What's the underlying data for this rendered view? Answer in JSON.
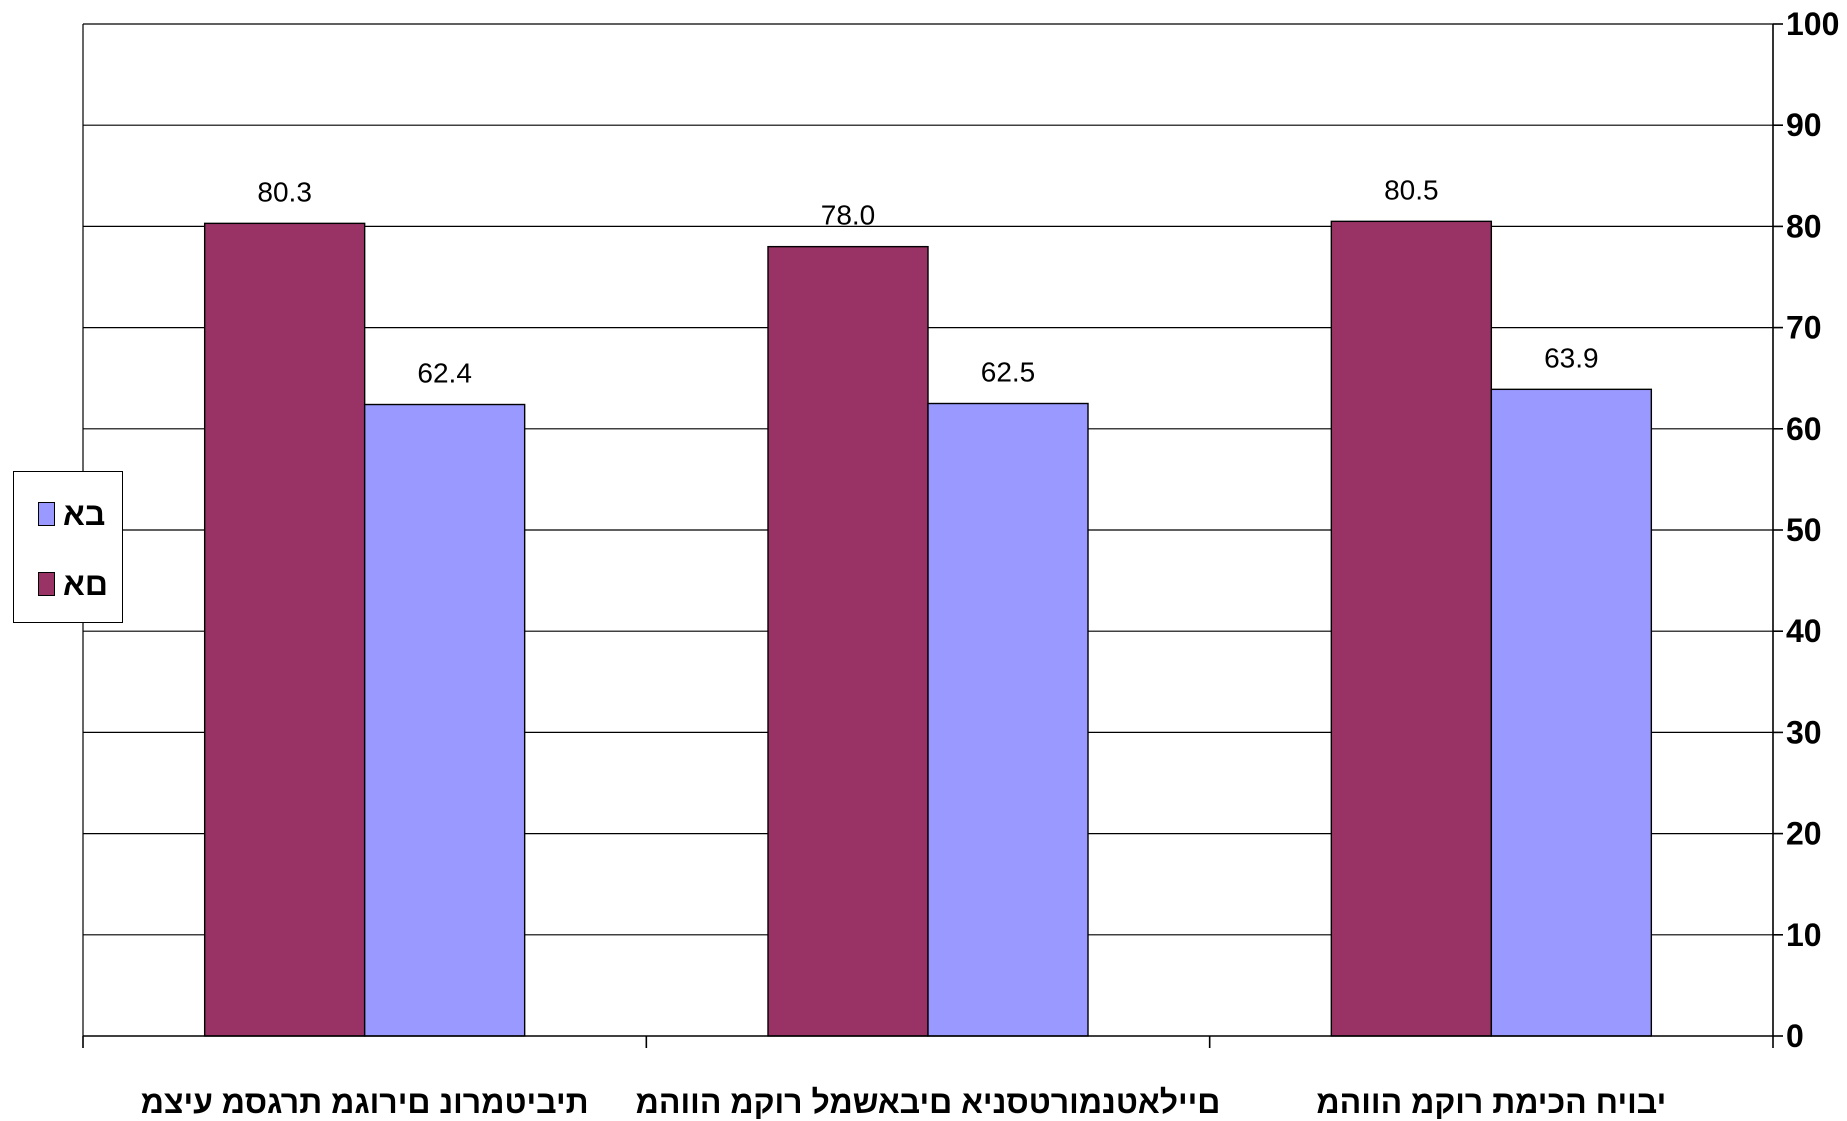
{
  "chart_data": {
    "type": "bar",
    "categories": [
      "תיביטמרונ םירוגמ תרגסמ עיצמ",
      "םיילאטנמורטסניא םיבאשמל רוקמ הווהמ",
      "יבויח הכימת רוקמ הווהמ"
    ],
    "series": [
      {
        "name": "םא",
        "color": "#993366",
        "values": [
          80.3,
          78.0,
          80.5
        ],
        "labels": [
          "80.3",
          "78.0",
          "80.5"
        ]
      },
      {
        "name": "בא",
        "color": "#9999FF",
        "values": [
          62.4,
          62.5,
          63.9
        ],
        "labels": [
          "62.4",
          "62.5",
          "63.9"
        ]
      }
    ],
    "y_ticks": [
      "0",
      "10",
      "20",
      "30",
      "40",
      "50",
      "60",
      "70",
      "80",
      "90",
      "100"
    ],
    "ylim": [
      0,
      100
    ],
    "y_axis_side": "right",
    "grid": true,
    "legend_position": "left",
    "legend_order": [
      "בא",
      "םא"
    ]
  }
}
